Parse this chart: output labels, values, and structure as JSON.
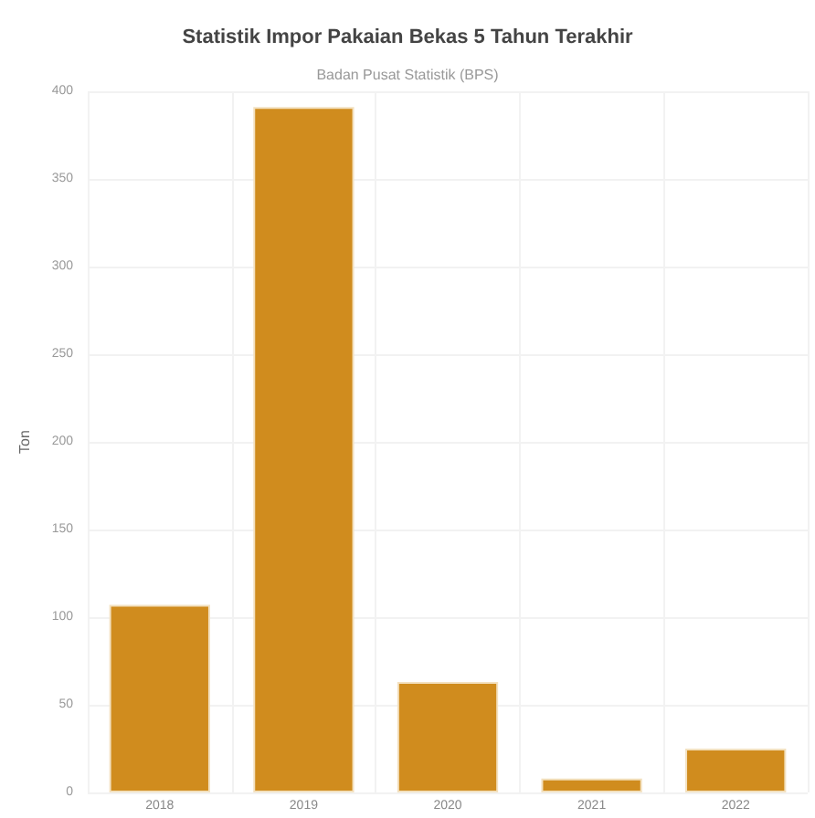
{
  "chart_data": {
    "type": "bar",
    "title": "Statistik Impor Pakaian Bekas 5 Tahun Terakhir",
    "subtitle": "Badan Pusat Statistik (BPS)",
    "ylabel": "Ton",
    "categories": [
      "2018",
      "2019",
      "2020",
      "2021",
      "2022"
    ],
    "values": [
      107,
      391,
      63,
      8,
      25
    ],
    "color": "#d08c1e",
    "ylim": [
      0,
      400
    ],
    "yticks": [
      0,
      50,
      100,
      150,
      200,
      250,
      300,
      350,
      400
    ],
    "grid": true
  }
}
